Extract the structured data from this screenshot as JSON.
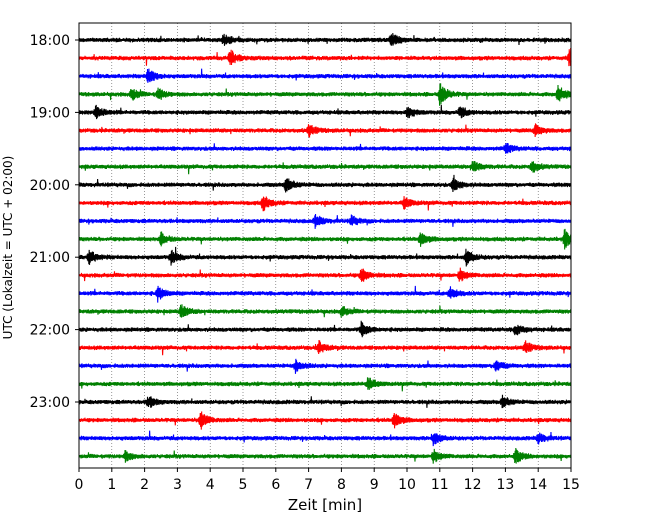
{
  "chart_data": {
    "type": "line",
    "title": "",
    "xlabel": "Zeit  [min]",
    "ylabel": "UTC (Lokalzeit = UTC + 02:00)",
    "xlim": [
      0,
      15
    ],
    "x_ticks": [
      0,
      1,
      2,
      3,
      4,
      5,
      6,
      7,
      8,
      9,
      10,
      11,
      12,
      13,
      14,
      15
    ],
    "x_tick_labels": [
      "0",
      "1",
      "2",
      "3",
      "4",
      "5",
      "6",
      "7",
      "8",
      "9",
      "10",
      "11",
      "12",
      "13",
      "14",
      "15"
    ],
    "y_tick_labels": [
      "18:00",
      "19:00",
      "20:00",
      "21:00",
      "22:00",
      "23:00"
    ],
    "grid": "x-dotted",
    "trace_colors": [
      "#000000",
      "#ff0000",
      "#0000ff",
      "#008000"
    ],
    "traces": [
      {
        "start": "18:00",
        "color": "#000000",
        "events": [
          {
            "t": 4.4,
            "a": 6
          },
          {
            "t": 9.5,
            "a": 7
          }
        ]
      },
      {
        "start": "18:15",
        "color": "#ff0000",
        "events": [
          {
            "t": 4.6,
            "a": 9
          },
          {
            "t": 14.95,
            "a": 10
          }
        ]
      },
      {
        "start": "18:30",
        "color": "#0000ff",
        "events": [
          {
            "t": 2.1,
            "a": 8
          }
        ]
      },
      {
        "start": "18:45",
        "color": "#008000",
        "events": [
          {
            "t": 1.6,
            "a": 6
          },
          {
            "t": 2.4,
            "a": 6
          },
          {
            "t": 11.0,
            "a": 12
          },
          {
            "t": 14.6,
            "a": 9
          }
        ]
      },
      {
        "start": "19:00",
        "color": "#000000",
        "events": [
          {
            "t": 0.5,
            "a": 8
          },
          {
            "t": 10.0,
            "a": 6
          },
          {
            "t": 11.6,
            "a": 6
          }
        ]
      },
      {
        "start": "19:15",
        "color": "#ff0000",
        "events": [
          {
            "t": 7.0,
            "a": 6
          },
          {
            "t": 13.9,
            "a": 6
          }
        ]
      },
      {
        "start": "19:30",
        "color": "#0000ff",
        "events": [
          {
            "t": 13.0,
            "a": 5
          }
        ]
      },
      {
        "start": "19:45",
        "color": "#008000",
        "events": [
          {
            "t": 12.0,
            "a": 6
          },
          {
            "t": 13.8,
            "a": 6
          }
        ]
      },
      {
        "start": "20:00",
        "color": "#000000",
        "events": [
          {
            "t": 6.3,
            "a": 8
          },
          {
            "t": 11.4,
            "a": 7
          }
        ]
      },
      {
        "start": "20:15",
        "color": "#ff0000",
        "events": [
          {
            "t": 5.6,
            "a": 8
          },
          {
            "t": 9.9,
            "a": 6
          }
        ]
      },
      {
        "start": "20:30",
        "color": "#0000ff",
        "events": [
          {
            "t": 7.2,
            "a": 6
          },
          {
            "t": 8.3,
            "a": 5
          }
        ]
      },
      {
        "start": "20:45",
        "color": "#008000",
        "events": [
          {
            "t": 2.5,
            "a": 6
          },
          {
            "t": 10.4,
            "a": 7
          },
          {
            "t": 14.8,
            "a": 9
          }
        ]
      },
      {
        "start": "21:00",
        "color": "#000000",
        "events": [
          {
            "t": 0.3,
            "a": 7
          },
          {
            "t": 2.8,
            "a": 7
          },
          {
            "t": 11.8,
            "a": 8
          }
        ]
      },
      {
        "start": "21:15",
        "color": "#ff0000",
        "events": [
          {
            "t": 8.6,
            "a": 7
          },
          {
            "t": 11.6,
            "a": 6
          }
        ]
      },
      {
        "start": "21:30",
        "color": "#0000ff",
        "events": [
          {
            "t": 2.4,
            "a": 7
          },
          {
            "t": 11.3,
            "a": 6
          }
        ]
      },
      {
        "start": "21:45",
        "color": "#008000",
        "events": [
          {
            "t": 3.1,
            "a": 7
          },
          {
            "t": 8.0,
            "a": 5
          }
        ]
      },
      {
        "start": "22:00",
        "color": "#000000",
        "events": [
          {
            "t": 8.6,
            "a": 7
          },
          {
            "t": 13.3,
            "a": 6
          }
        ]
      },
      {
        "start": "22:15",
        "color": "#ff0000",
        "events": [
          {
            "t": 7.3,
            "a": 6
          },
          {
            "t": 13.6,
            "a": 6
          }
        ]
      },
      {
        "start": "22:30",
        "color": "#0000ff",
        "events": [
          {
            "t": 6.6,
            "a": 6
          },
          {
            "t": 12.7,
            "a": 6
          }
        ]
      },
      {
        "start": "22:45",
        "color": "#008000",
        "events": [
          {
            "t": 8.8,
            "a": 7
          }
        ]
      },
      {
        "start": "23:00",
        "color": "#000000",
        "events": [
          {
            "t": 2.1,
            "a": 6
          },
          {
            "t": 12.9,
            "a": 6
          }
        ]
      },
      {
        "start": "23:15",
        "color": "#ff0000",
        "events": [
          {
            "t": 3.7,
            "a": 9
          },
          {
            "t": 9.6,
            "a": 8
          }
        ]
      },
      {
        "start": "23:30",
        "color": "#0000ff",
        "events": [
          {
            "t": 10.8,
            "a": 7
          },
          {
            "t": 14.0,
            "a": 5
          }
        ]
      },
      {
        "start": "23:45",
        "color": "#008000",
        "events": [
          {
            "t": 1.4,
            "a": 5
          },
          {
            "t": 10.8,
            "a": 6
          },
          {
            "t": 13.3,
            "a": 7
          }
        ]
      }
    ]
  }
}
